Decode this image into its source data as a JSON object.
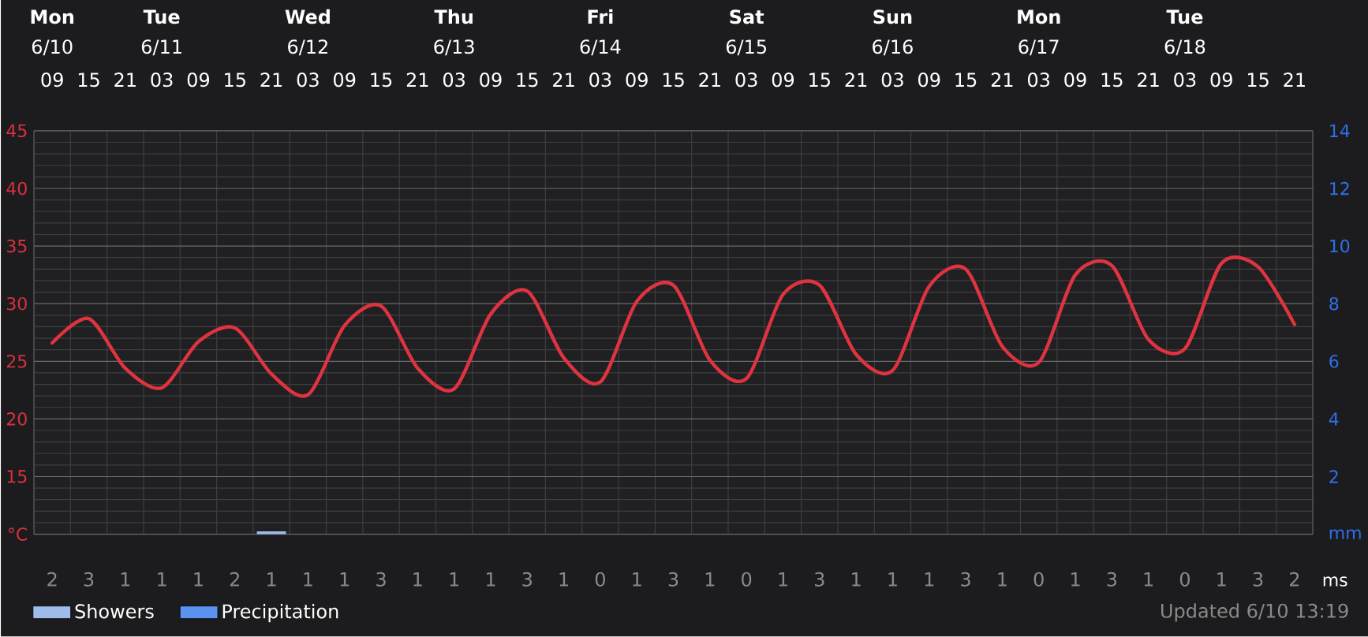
{
  "chart_data": {
    "type": "line",
    "categories": [
      "09",
      "15",
      "21",
      "03",
      "09",
      "15",
      "21",
      "03",
      "09",
      "15",
      "21",
      "03",
      "09",
      "15",
      "21",
      "03",
      "09",
      "15",
      "21",
      "03",
      "09",
      "15",
      "21",
      "03",
      "09",
      "15",
      "21",
      "03",
      "09",
      "15",
      "21",
      "03",
      "09",
      "15",
      "21"
    ],
    "xlabel": "ms",
    "ylim": [
      10,
      45
    ],
    "yticks": [
      {
        "value": 10,
        "label": "°C"
      },
      15,
      20,
      25,
      30,
      35,
      40,
      45
    ],
    "y2lim": [
      0,
      14
    ],
    "y2ticks": [
      {
        "value": 0,
        "label": "mm"
      },
      2,
      4,
      6,
      8,
      10,
      12,
      14
    ],
    "grid": true,
    "legend": "bottom left",
    "series": [
      {
        "color": "#e03340",
        "values": [
          26.6,
          28.7,
          24.4,
          22.7,
          26.7,
          27.9,
          23.9,
          22.1,
          28.1,
          29.8,
          24.4,
          22.6,
          29.1,
          31.1,
          25.3,
          23.2,
          30.2,
          31.6,
          25.1,
          23.5,
          30.8,
          31.6,
          25.6,
          24.2,
          31.5,
          33.0,
          26.3,
          24.9,
          32.5,
          33.3,
          26.9,
          26.1,
          33.5,
          33.2,
          28.2
        ]
      },
      {
        "name": "Showers",
        "type": "bar",
        "axis": "y2",
        "color": "#9fbbea",
        "values": [
          null,
          null,
          null,
          null,
          null,
          null,
          0.1,
          null,
          null,
          null,
          null,
          null,
          null,
          null,
          null,
          null,
          null,
          null,
          null,
          null,
          null,
          null,
          null,
          null,
          null,
          null,
          null,
          null,
          null,
          null,
          null,
          null,
          null,
          null,
          null
        ]
      },
      {
        "name": "Precipitation",
        "type": "bar",
        "axis": "y2",
        "color": "#5b93ee",
        "values": [
          null,
          null,
          null,
          null,
          null,
          null,
          null,
          null,
          null,
          null,
          null,
          null,
          null,
          null,
          null,
          null,
          null,
          null,
          null,
          null,
          null,
          null,
          null,
          null,
          null,
          null,
          null,
          null,
          null,
          null,
          null,
          null,
          null,
          null,
          null
        ]
      }
    ],
    "annotations": [
      "Updated 6/10 13:19",
      "Mon",
      "6/10",
      "Tue",
      "6/11",
      "Wed",
      "6/12",
      "Thu",
      "6/13",
      "Fri",
      "6/14",
      "Sat",
      "6/15",
      "Sun",
      "6/16",
      "Mon",
      "6/17",
      "Tue",
      "6/18",
      "2",
      "3",
      "1",
      "1",
      "1",
      "2",
      "1",
      "1",
      "1",
      "3",
      "1",
      "1",
      "1",
      "3",
      "1",
      "0",
      "1",
      "3",
      "1",
      "0",
      "1",
      "3",
      "1",
      "1",
      "1",
      "3",
      "1",
      "0",
      "1",
      "3",
      "1",
      "0",
      "1",
      "3",
      "2"
    ]
  }
}
